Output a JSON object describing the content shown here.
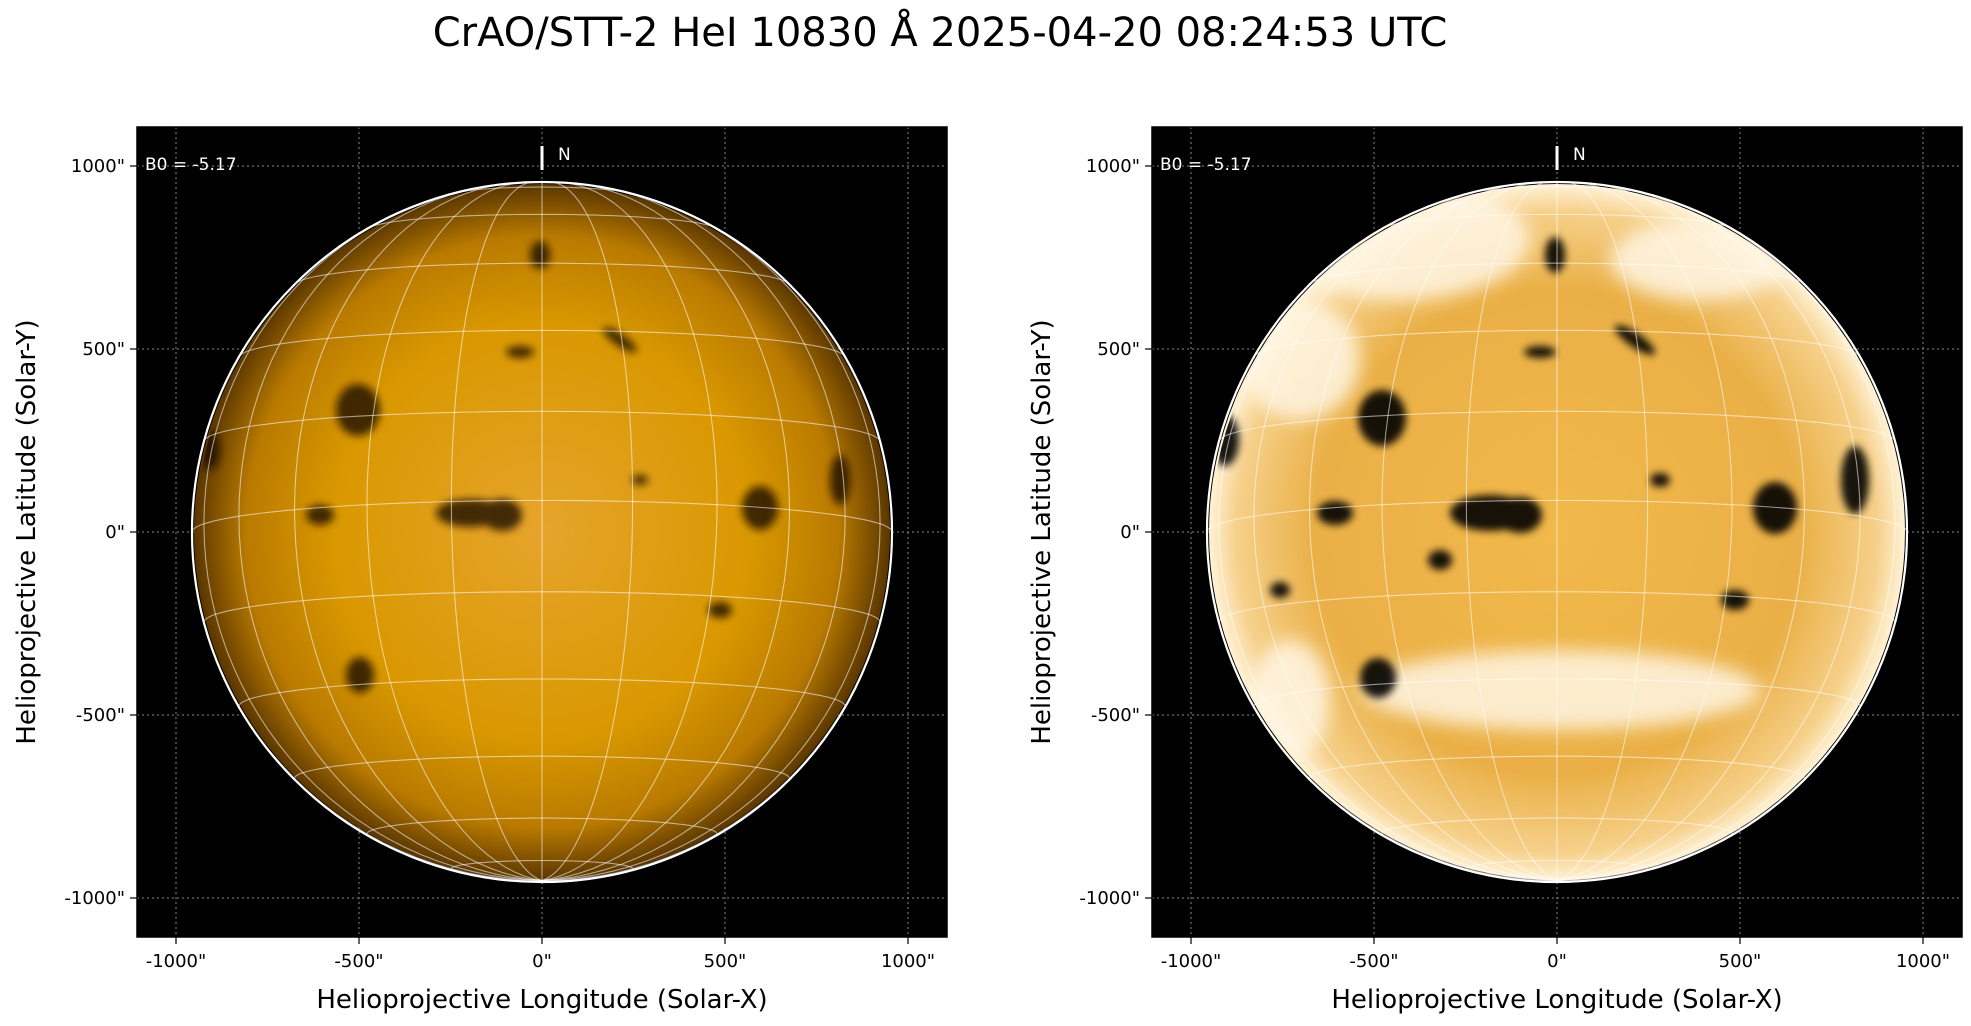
{
  "title": "CrAO/STT-2 HeI 10830 Å 2025-04-20 08:24:53 UTC",
  "colors": {
    "background": "#000000",
    "disk_bright": "#f0b640",
    "disk_mid": "#d68f00",
    "disk_limb": "#6e4200",
    "overlay": "#ffffff"
  },
  "panels": [
    {
      "id": "left",
      "xlabel": "Helioprojective Longitude (Solar-X)",
      "ylabel": "Helioprojective Latitude (Solar-Y)",
      "b0_label": "B0 = -5.17",
      "north_label": "N",
      "x_ticks": [
        "-1000\"",
        "-500\"",
        "0\"",
        "500\"",
        "1000\""
      ],
      "y_ticks": [
        "1000\"",
        "500\"",
        "0\"",
        "-500\"",
        "-1000\""
      ],
      "variant": "normal"
    },
    {
      "id": "right",
      "xlabel": "Helioprojective Longitude (Solar-X)",
      "ylabel": "Helioprojective Latitude (Solar-Y)",
      "b0_label": "B0 = -5.17",
      "north_label": "N",
      "x_ticks": [
        "-1000\"",
        "-500\"",
        "0\"",
        "500\"",
        "1000\""
      ],
      "y_ticks": [
        "1000\"",
        "500\"",
        "0\"",
        "-500\"",
        "-1000\""
      ],
      "variant": "enhanced"
    }
  ]
}
